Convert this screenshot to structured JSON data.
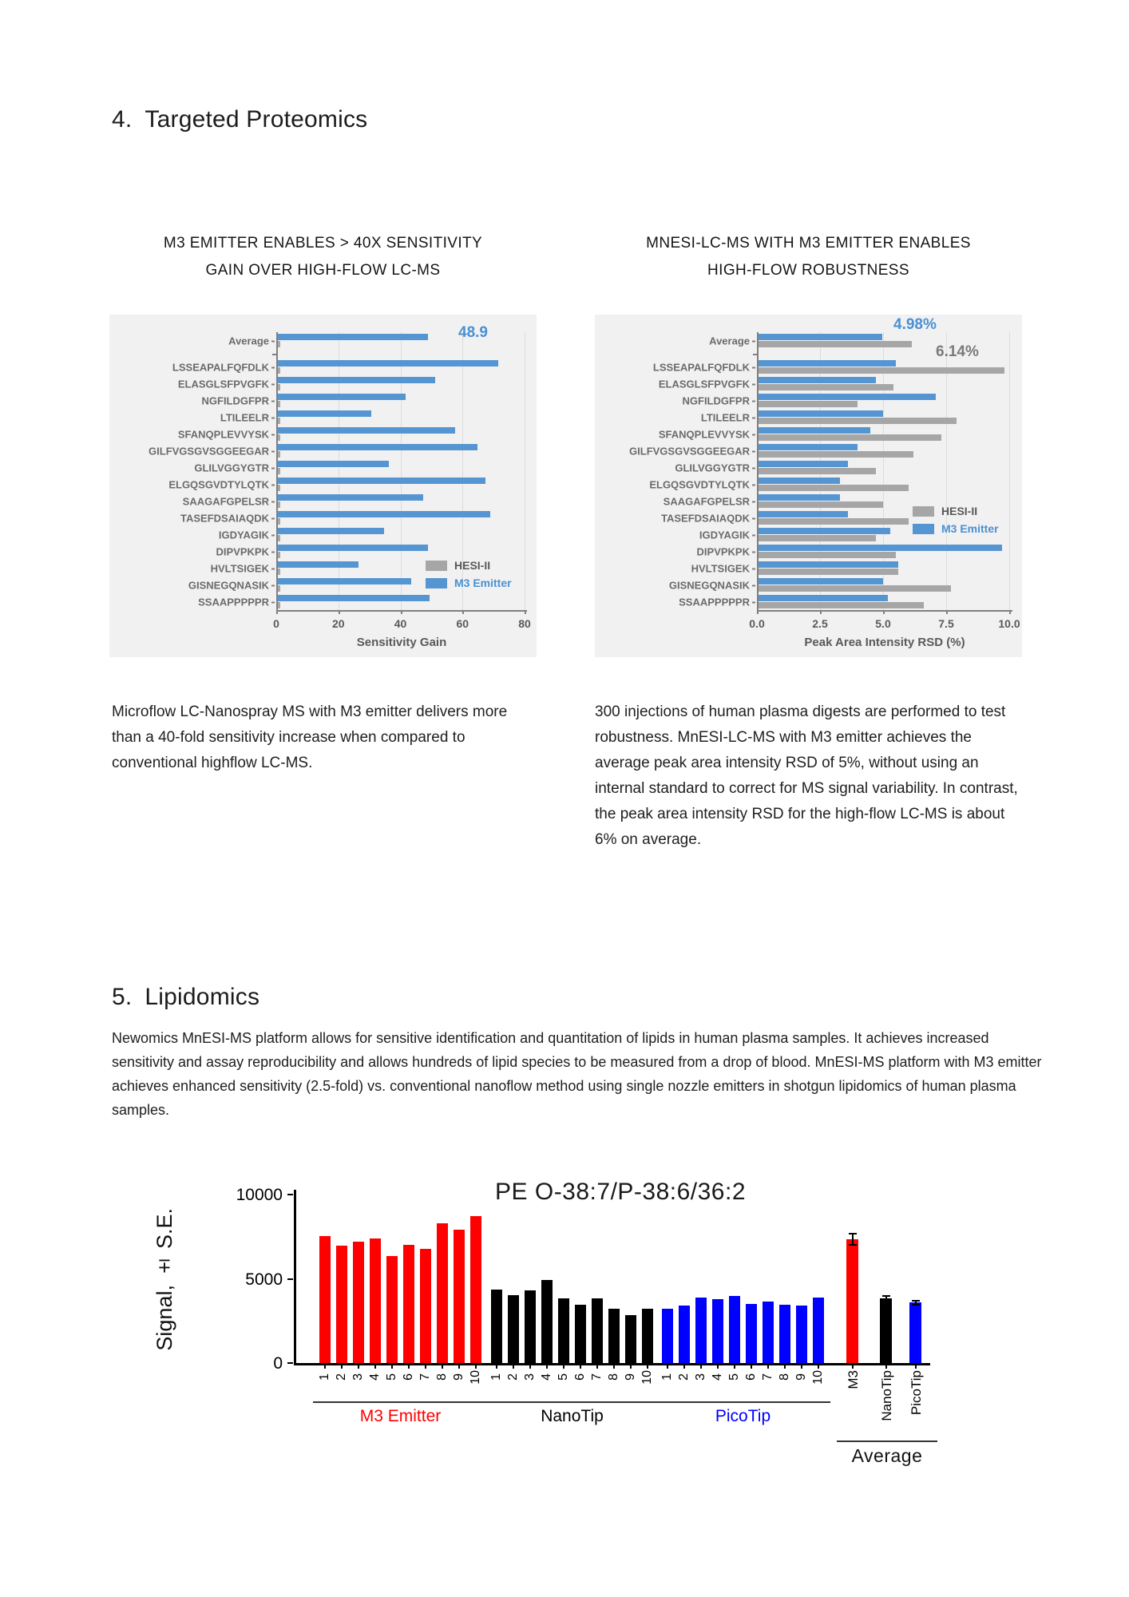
{
  "section4": {
    "number": "4.",
    "title": "Targeted Proteomics"
  },
  "proteomics": {
    "left_title_line1": "M3 EMITTER ENABLES > 40X SENSITIVITY",
    "left_title_line2": "GAIN OVER HIGH-FLOW LC-MS",
    "right_title_line1": "MNESI-LC-MS WITH M3 EMITTER ENABLES",
    "right_title_line2": "HIGH-FLOW ROBUSTNESS",
    "left_caption": "Microflow LC-Nanospray MS with M3 emitter delivers more than a 40-fold sensitivity increase when compared to conventional highflow LC-MS.",
    "right_caption": "300 injections of human plasma digests are performed to test robustness. MnESI-LC-MS with M3 emitter achieves the average peak area intensity RSD of 5%, without using an internal standard to correct for MS signal variability. In contrast, the peak area intensity RSD for the high-flow LC-MS is about 6% on average."
  },
  "section5": {
    "number": "5.",
    "title": "Lipidomics"
  },
  "lipidomics": {
    "paragraph": "Newomics MnESI-MS platform allows for sensitive identification and quantitation of lipids in human plasma samples. It achieves increased sensitivity and assay reproducibility and allows hundreds of lipid species to be measured from a drop of blood. MnESI-MS platform with M3 emitter achieves enhanced sensitivity (2.5-fold) vs. conventional nanoflow method using single nozzle emitters in shotgun lipidomics of human plasma samples."
  },
  "colors": {
    "m3_blue": "#5596d2",
    "hesi_gray": "#a6a6a6",
    "annotation_blue": "#4a90d2",
    "annotation_gray": "#7a7a7a",
    "red": "#ff0000",
    "black": "#000000",
    "blue": "#0000ff"
  },
  "chart_data": [
    {
      "type": "bar",
      "orientation": "horizontal",
      "title": "M3 EMITTER ENABLES > 40X SENSITIVITY GAIN OVER HIGH-FLOW LC-MS",
      "categories": [
        "Average",
        "",
        "LSSEAPALFQFDLK",
        "ELASGLSFPVGFK",
        "NGFILDGFPR",
        "LTILEELR",
        "SFANQPLEVVYSK",
        "GILFVGSGVSGGEEGAR",
        "GLILVGGYGTR",
        "ELGQSGVDTYLQTK",
        "SAAGAFGPELSR",
        "TASEFDSAIAQDK",
        "IGDYAGIK",
        "DIPVPKPK",
        "HVLTSIGEK",
        "GISNEGQNASIK",
        "SSAAPPPPPR"
      ],
      "series": [
        {
          "name": "HESI-II",
          "color": "#a6a6a6",
          "text_color": "#595959",
          "values": [
            1.2,
            null,
            1.2,
            1.2,
            1.2,
            1.2,
            1.2,
            1.2,
            1.2,
            1.2,
            1.2,
            1.2,
            1.2,
            1.2,
            1.2,
            1.2,
            1.2
          ]
        },
        {
          "name": "M3 Emitter",
          "color": "#5596d2",
          "text_color": "#4a90d2",
          "values": [
            48.9,
            null,
            71.5,
            51.3,
            41.8,
            30.6,
            57.7,
            64.8,
            36.2,
            67.3,
            47.4,
            68.9,
            34.7,
            49.0,
            26.6,
            43.5,
            49.5
          ]
        }
      ],
      "xlabel": "Sensitivity Gain",
      "xlim": [
        0,
        80
      ],
      "xticks": [
        0,
        20,
        40,
        60,
        80
      ],
      "xtick_labels": [
        "0",
        "20",
        "40",
        "60",
        "80"
      ],
      "annotations": [
        {
          "text": "48.9",
          "color": "#4a90d2"
        }
      ],
      "legend_position": "lower right",
      "grid": true
    },
    {
      "type": "bar",
      "orientation": "horizontal",
      "title": "MNESI-LC-MS WITH M3 EMITTER ENABLES HIGH-FLOW ROBUSTNESS",
      "categories": [
        "Average",
        "",
        "LSSEAPALFQFDLK",
        "ELASGLSFPVGFK",
        "NGFILDGFPR",
        "LTILEELR",
        "SFANQPLEVVYSK",
        "GILFVGSGVSGGEEGAR",
        "GLILVGGYGTR",
        "ELGQSGVDTYLQTK",
        "SAAGAFGPELSR",
        "TASEFDSAIAQDK",
        "IGDYAGIK",
        "DIPVPKPK",
        "HVLTSIGEK",
        "GISNEGQNASIK",
        "SSAAPPPPPR"
      ],
      "series": [
        {
          "name": "HESI-II",
          "color": "#a6a6a6",
          "text_color": "#595959",
          "values": [
            6.14,
            null,
            9.8,
            5.4,
            4.0,
            7.9,
            7.3,
            6.2,
            4.7,
            6.0,
            5.0,
            6.0,
            4.7,
            5.5,
            5.6,
            7.7,
            6.6
          ]
        },
        {
          "name": "M3 Emitter",
          "color": "#5596d2",
          "text_color": "#4a90d2",
          "values": [
            4.98,
            null,
            5.5,
            4.7,
            7.1,
            5.0,
            4.5,
            4.0,
            3.6,
            3.3,
            3.3,
            3.6,
            5.3,
            9.7,
            5.6,
            5.0,
            5.2
          ]
        }
      ],
      "xlabel": "Peak Area Intensity RSD (%)",
      "xlim": [
        0,
        10
      ],
      "xticks": [
        0,
        2.5,
        5,
        7.5,
        10
      ],
      "xtick_labels": [
        "0.0",
        "2.5",
        "5.0",
        "7.5",
        "10.0"
      ],
      "annotations": [
        {
          "text": "4.98%",
          "color": "#4a90d2"
        },
        {
          "text": "6.14%",
          "color": "#7a7a7a"
        }
      ],
      "legend_position": "center right",
      "grid": true
    },
    {
      "type": "bar",
      "orientation": "vertical",
      "title": "PE O-38:7/P-38:6/36:2",
      "ylabel": "Signal, ± S.E.",
      "ylim": [
        0,
        10000
      ],
      "yticks": [
        0,
        5000,
        10000
      ],
      "ytick_labels": [
        "0",
        "5000",
        "10000"
      ],
      "groups": [
        {
          "name": "M3 Emitter",
          "label_color": "#ff0000",
          "bar_color": "#ff0000",
          "x": [
            "1",
            "2",
            "3",
            "4",
            "5",
            "6",
            "7",
            "8",
            "9",
            "10"
          ],
          "values": [
            7550,
            6950,
            7200,
            7400,
            6350,
            7000,
            6800,
            8300,
            7900,
            8700
          ]
        },
        {
          "name": "NanoTip",
          "label_color": "#000000",
          "bar_color": "#000000",
          "x": [
            "1",
            "2",
            "3",
            "4",
            "5",
            "6",
            "7",
            "8",
            "9",
            "10"
          ],
          "values": [
            4350,
            4050,
            4300,
            4950,
            3850,
            3450,
            3850,
            3200,
            2850,
            3200
          ]
        },
        {
          "name": "PicoTip",
          "label_color": "#0000ff",
          "bar_color": "#0000ff",
          "x": [
            "1",
            "2",
            "3",
            "4",
            "5",
            "6",
            "7",
            "8",
            "9",
            "10"
          ],
          "values": [
            3200,
            3400,
            3900,
            3800,
            4000,
            3500,
            3650,
            3450,
            3400,
            3900
          ]
        },
        {
          "name": "Average",
          "label_color": "#111111",
          "bars": [
            {
              "label": "M3",
              "color": "#ff0000",
              "value": 7350,
              "error": 320
            },
            {
              "label": "NanoTip",
              "color": "#000000",
              "value": 3850,
              "error": 150
            },
            {
              "label": "PicoTip",
              "color": "#0000ff",
              "value": 3600,
              "error": 120
            }
          ]
        }
      ]
    }
  ]
}
